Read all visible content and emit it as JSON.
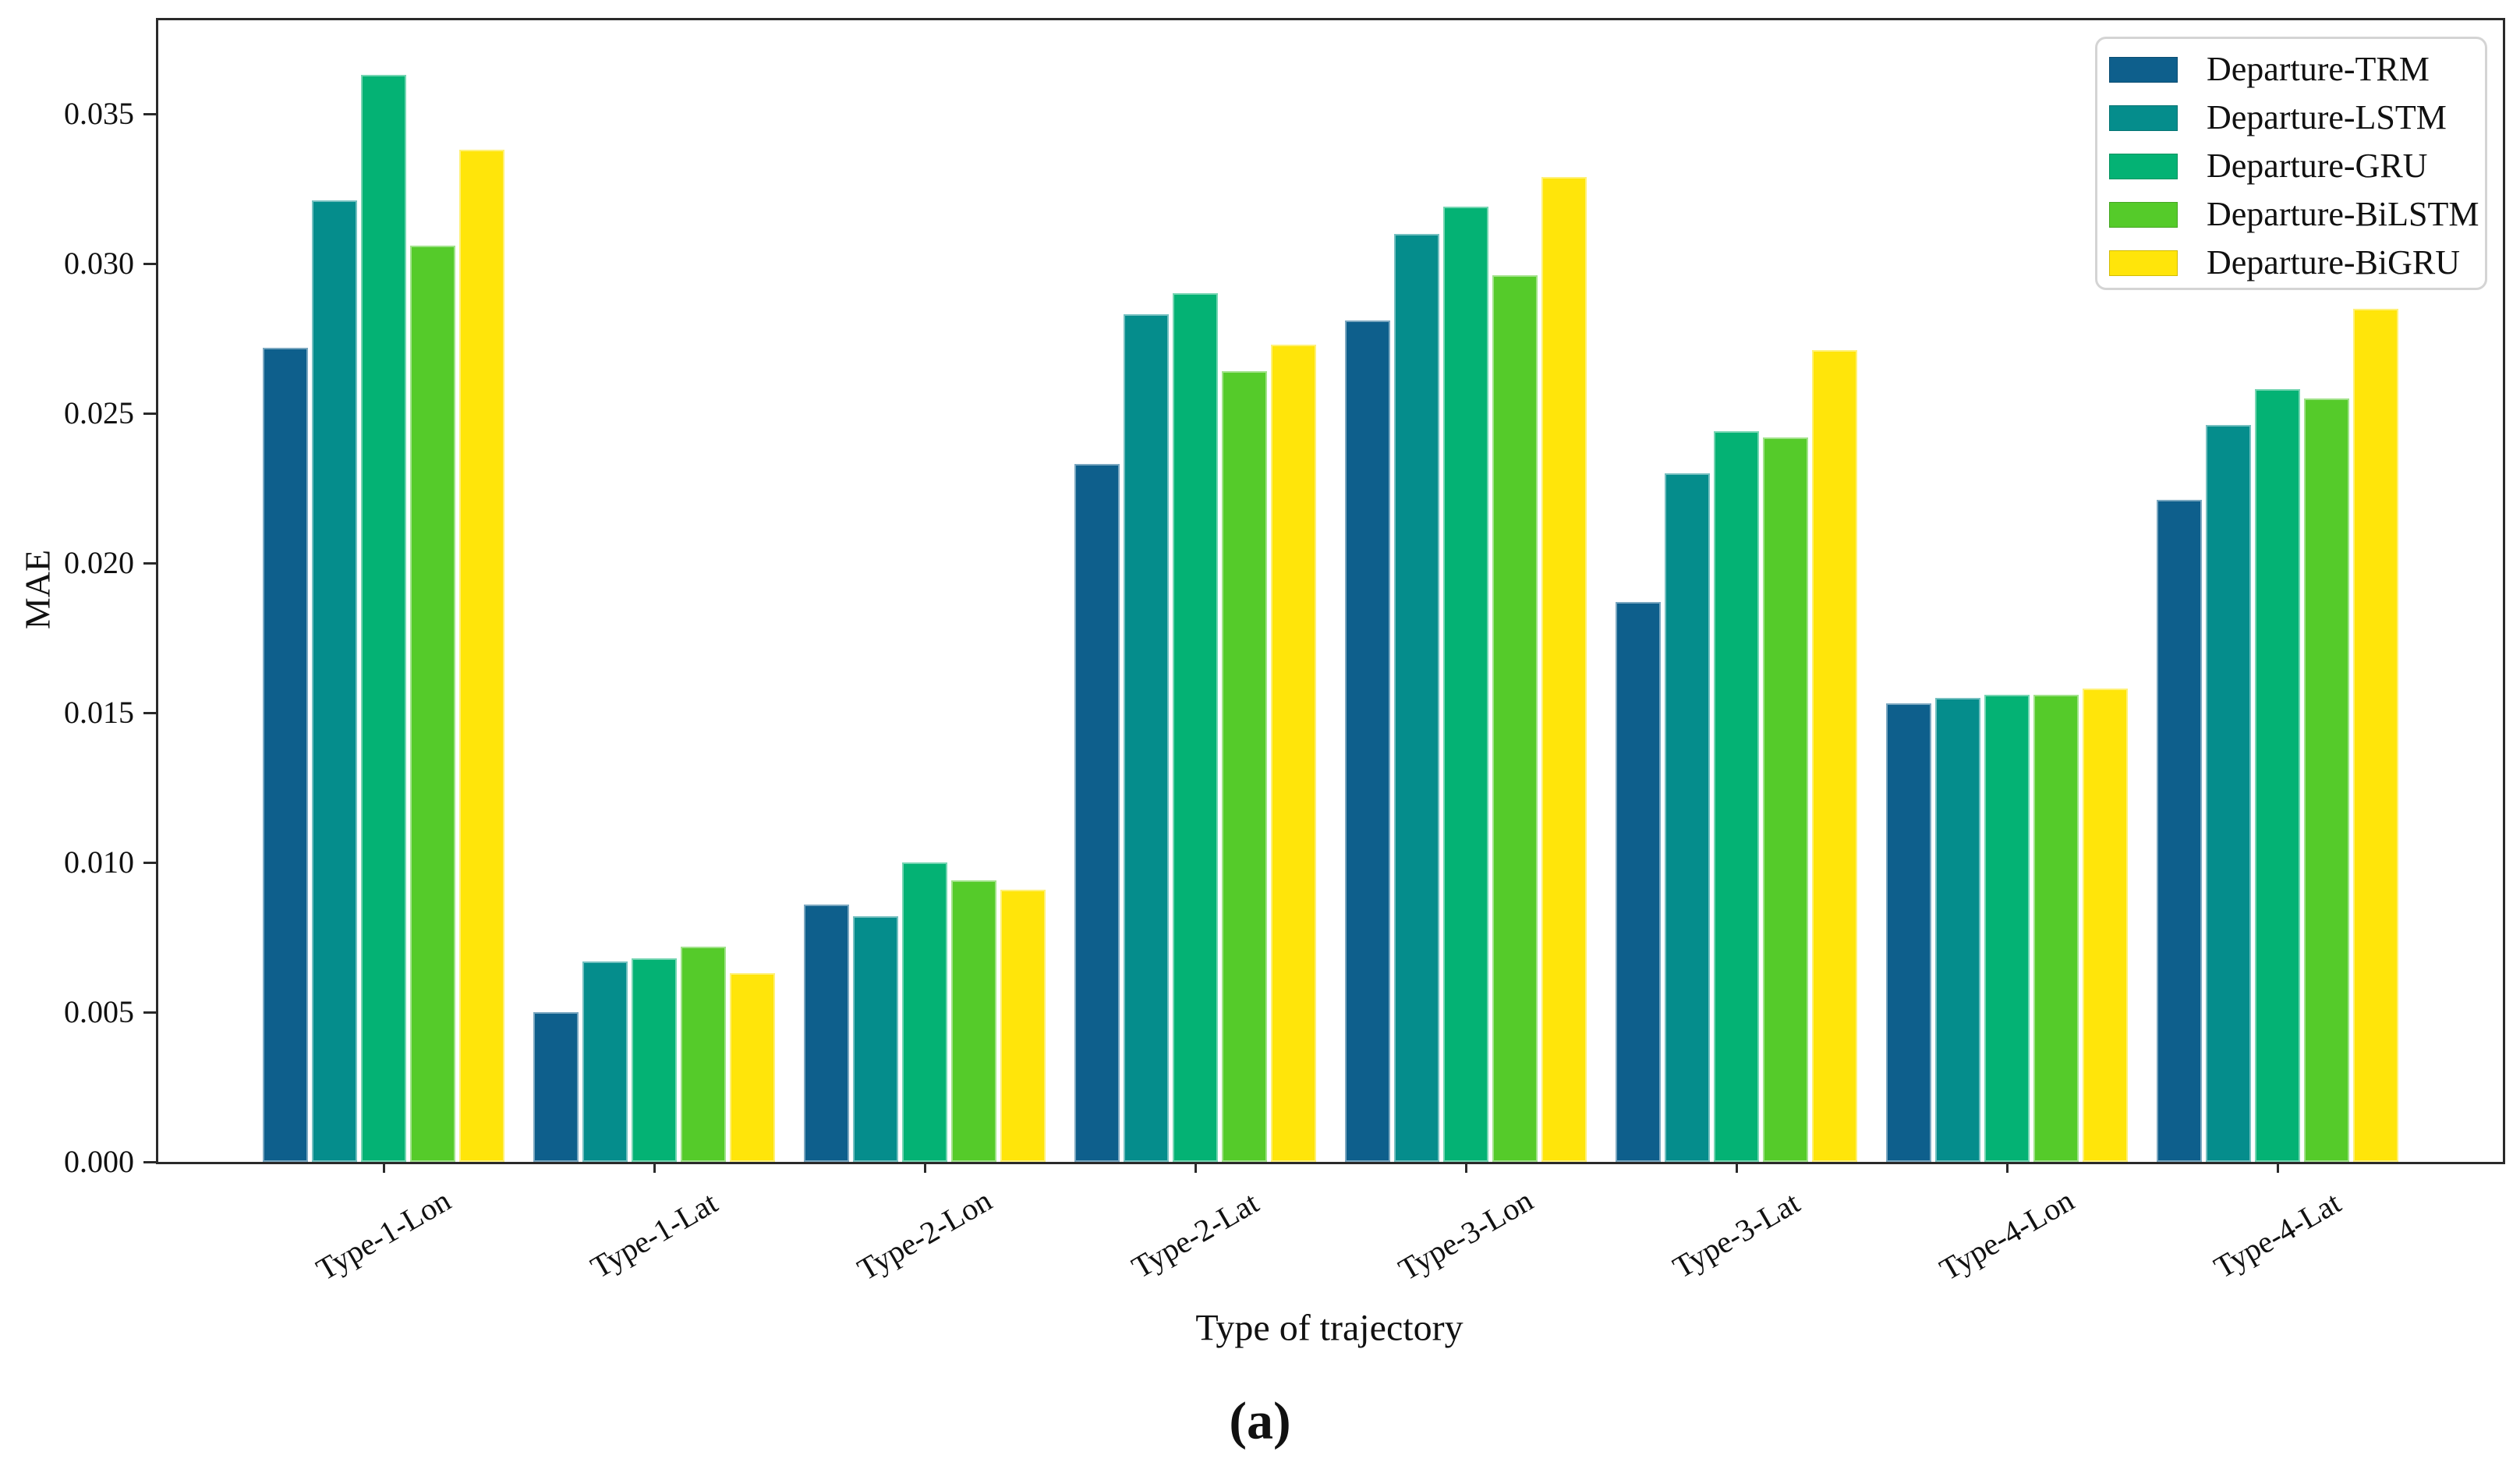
{
  "figure": {
    "caption": "(a)",
    "background": "#ffffff",
    "frame_color": "#2a2a2a"
  },
  "chart_data": {
    "type": "bar",
    "title": "",
    "xlabel": "Type of trajectory",
    "ylabel": "MAE",
    "categories": [
      "Type-1-Lon",
      "Type-1-Lat",
      "Type-2-Lon",
      "Type-2-Lat",
      "Type-3-Lon",
      "Type-3-Lat",
      "Type-4-Lon",
      "Type-4-Lat"
    ],
    "series": [
      {
        "name": "Departure-TRM",
        "color": "#0e5f8c",
        "values": [
          0.0272,
          0.005,
          0.0086,
          0.0233,
          0.0281,
          0.0187,
          0.0153,
          0.0221
        ]
      },
      {
        "name": "Departure-LSTM",
        "color": "#058d8c",
        "values": [
          0.0321,
          0.0067,
          0.0082,
          0.0283,
          0.031,
          0.023,
          0.0155,
          0.0246
        ]
      },
      {
        "name": "Departure-GRU",
        "color": "#04b274",
        "values": [
          0.0363,
          0.0068,
          0.01,
          0.029,
          0.0319,
          0.0244,
          0.0156,
          0.0258
        ]
      },
      {
        "name": "Departure-BiLSTM",
        "color": "#55cb2a",
        "values": [
          0.0306,
          0.0072,
          0.0094,
          0.0264,
          0.0296,
          0.0242,
          0.0156,
          0.0255
        ]
      },
      {
        "name": "Departure-BiGRU",
        "color": "#ffe50a",
        "values": [
          0.0338,
          0.0063,
          0.0091,
          0.0273,
          0.0329,
          0.0271,
          0.0158,
          0.0285
        ]
      }
    ],
    "y_ticks": [
      "0.000",
      "0.005",
      "0.010",
      "0.015",
      "0.020",
      "0.025",
      "0.030",
      "0.035"
    ],
    "ylim": [
      0,
      0.0382
    ],
    "grid": false,
    "legend_position": "upper right"
  }
}
